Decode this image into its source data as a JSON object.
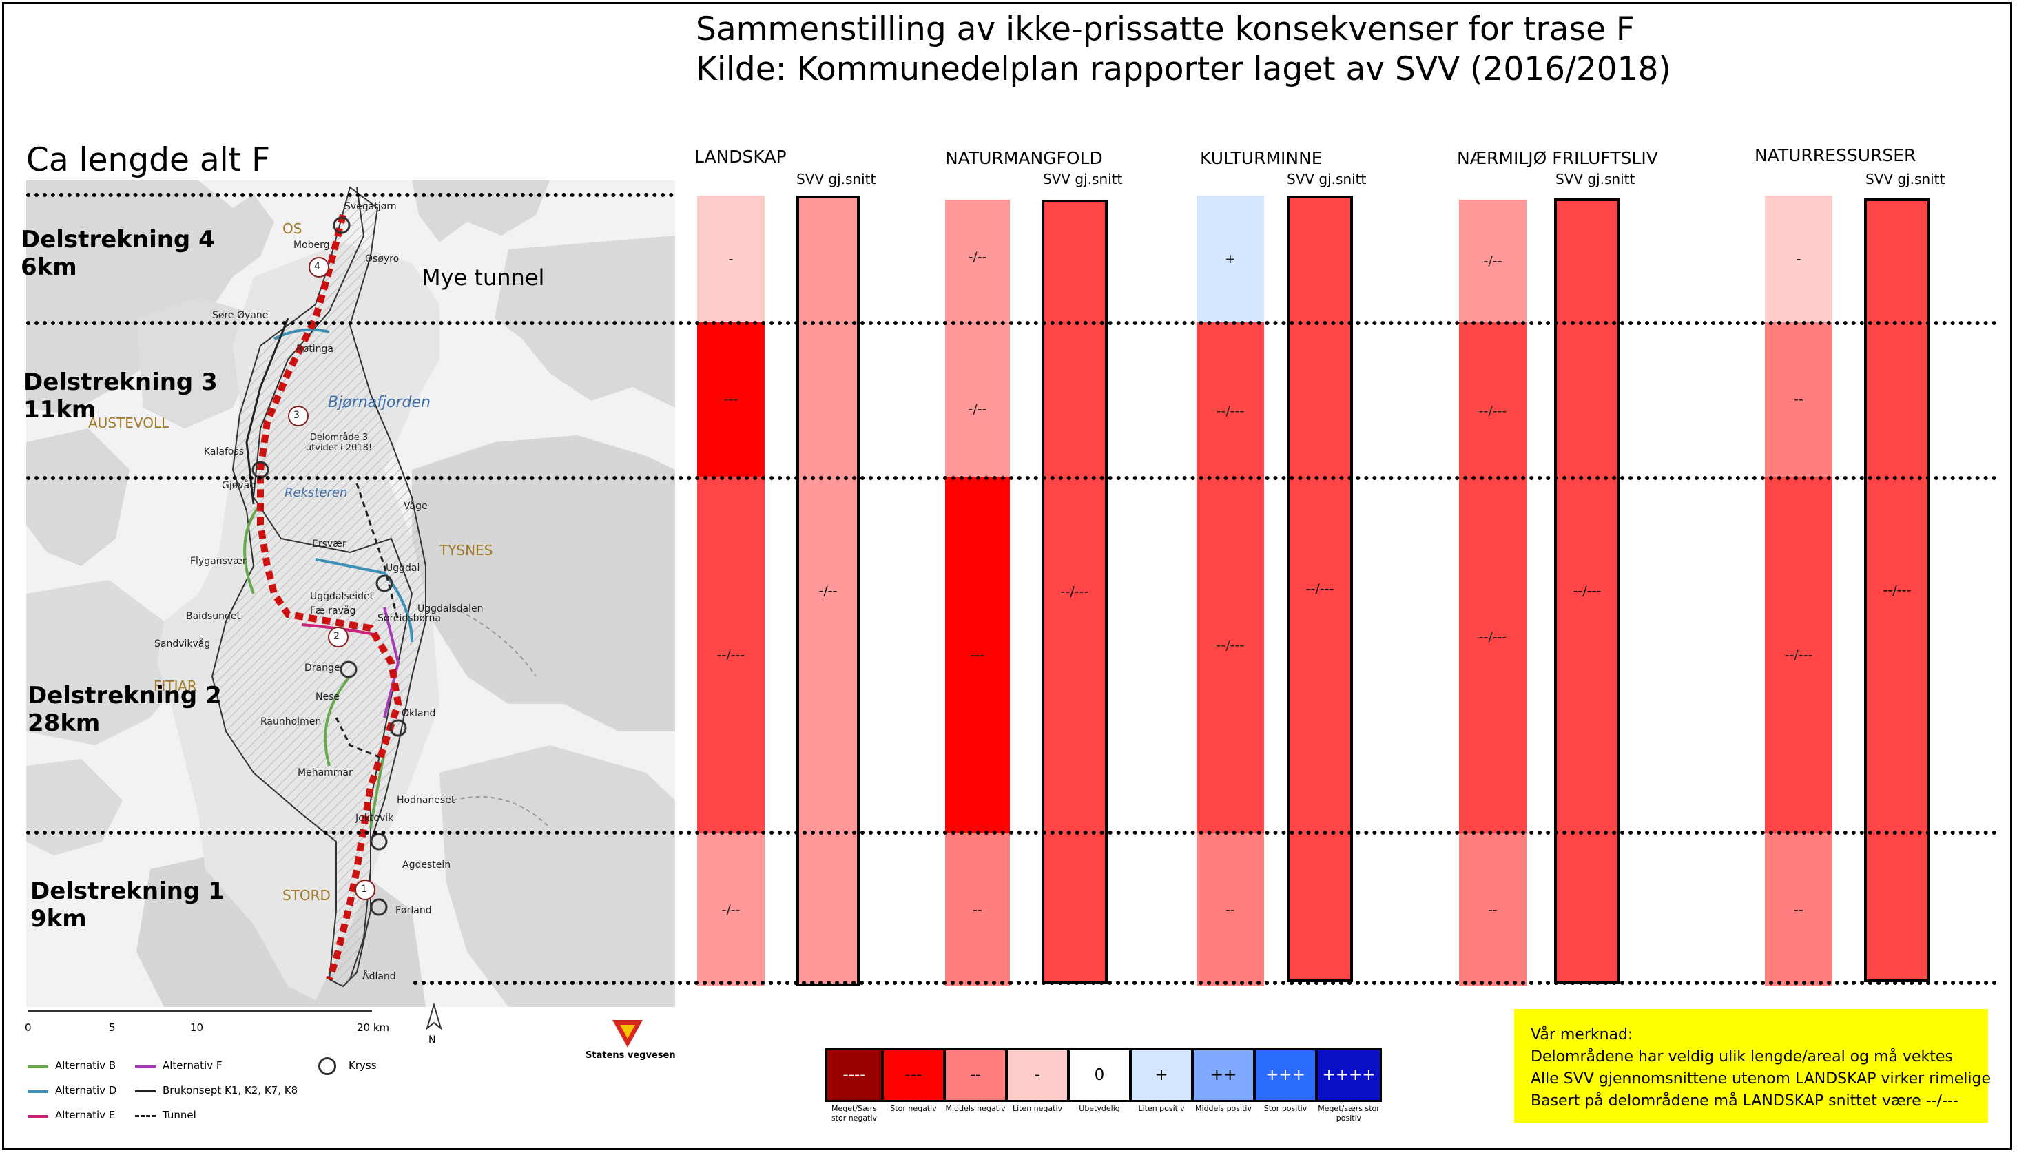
{
  "title": {
    "line1": "Sammenstilling av ikke-prissatte konsekvenser for trase F",
    "line2": "Kilde: Kommunedelplan rapporter laget av SVV (2016/2018)"
  },
  "length_heading": "Ca lengde alt F",
  "segments": [
    {
      "name": "Delstrekning 4",
      "length": "6km"
    },
    {
      "name": "Delstrekning 3",
      "length": "11km"
    },
    {
      "name": "Delstrekning 2",
      "length": "28km"
    },
    {
      "name": "Delstrekning 1",
      "length": "9km"
    }
  ],
  "tunnel_note": "Mye tunnel",
  "svv_label": "SVV gj.snitt",
  "categories": [
    {
      "name": "LANDSKAP",
      "values": [
        "-",
        "---",
        "--/---",
        "-/--"
      ],
      "colors": [
        "#ffcccc",
        "#ff0000",
        "#ff4545",
        "#ff9999"
      ],
      "average": "-/--",
      "avg_color": "#ff9999"
    },
    {
      "name": "NATURMANGFOLD",
      "values": [
        "-/--",
        "-/--",
        "---",
        "--"
      ],
      "colors": [
        "#ff9999",
        "#ff9999",
        "#ff0000",
        "#ff7f7f"
      ],
      "average": "--/---",
      "avg_color": "#ff4545"
    },
    {
      "name": "KULTURMINNE",
      "values": [
        "+",
        "--/---",
        "--/---",
        "--"
      ],
      "colors": [
        "#d4e6ff",
        "#ff4545",
        "#ff4545",
        "#ff7f7f"
      ],
      "average": "--/---",
      "avg_color": "#ff4545"
    },
    {
      "name": "NÆRMILJØ FRILUFTSLIV",
      "values": [
        "-/--",
        "--/---",
        "--/---",
        "--"
      ],
      "colors": [
        "#ff9999",
        "#ff4545",
        "#ff4545",
        "#ff7f7f"
      ],
      "average": "--/---",
      "avg_color": "#ff4545"
    },
    {
      "name": "NATURRESSURSER",
      "values": [
        "-",
        "--",
        "--/---",
        "--"
      ],
      "colors": [
        "#ffcccc",
        "#ff7f7f",
        "#ff4545",
        "#ff7f7f"
      ],
      "average": "--/---",
      "avg_color": "#ff4545"
    }
  ],
  "legend": [
    {
      "symbol": "----",
      "caption": "Meget/Særs stor negativ",
      "color": "#990000"
    },
    {
      "symbol": "---",
      "caption": "Stor negativ",
      "color": "#ff0000"
    },
    {
      "symbol": "--",
      "caption": "Middels negativ",
      "color": "#ff7f7f"
    },
    {
      "symbol": "-",
      "caption": "Liten negativ",
      "color": "#ffcccc"
    },
    {
      "symbol": "0",
      "caption": "Ubetydelig",
      "color": "#ffffff"
    },
    {
      "symbol": "+",
      "caption": "Liten positiv",
      "color": "#d4e6ff"
    },
    {
      "symbol": "++",
      "caption": "Middels positiv",
      "color": "#7faaff"
    },
    {
      "symbol": "+++",
      "caption": "Stor positiv",
      "color": "#2b6cff"
    },
    {
      "symbol": "++++",
      "caption": "Meget/særs stor positiv",
      "color": "#0a10c8"
    }
  ],
  "note": {
    "heading": "Vår merknad:",
    "lines": [
      "Delområdene har veldig ulik lengde/areal og må vektes",
      "Alle SVV gjennomsnittene utenom LANDSKAP virker rimelige",
      "Basert på delområdene må LANDSKAP snittet være --/---"
    ]
  },
  "map": {
    "place_labels": {
      "os": "OS",
      "austevoll": "AUSTEVOLL",
      "tysnes": "TYSNES",
      "fitjar": "FITJAR",
      "stord": "STORD",
      "bjornafjorden": "Bjørnafjorden",
      "reksteren": "Reksteren",
      "svegatjorn": "Svegatjørn",
      "moberg": "Moberg",
      "osoyro": "Osøyro",
      "sore_ovane": "Søre Øyane",
      "rotinga": "Røtinga",
      "kalafoss": "Kalafoss",
      "gjovag": "Gjøvåg",
      "vage": "Våge",
      "ersvar": "Ersvær",
      "uggdal": "Uggdal",
      "flygansvar": "Flygansvær",
      "uggdalseidet": "Uggdalseidet",
      "fararvag": "Fæ ravåg",
      "uggdalsdalen": "Uggdalsdalen",
      "baidsundet": "Baidsundet",
      "soreidsborna": "Søreidsbørna",
      "sandvikvag": "Sandvikvåg",
      "drange": "Drange",
      "nese": "Nese",
      "okland": "Økland",
      "raunholmen": "Raunholmen",
      "mehammar": "Mehammar",
      "hodnaneset": "Hodnaneset",
      "jektevik": "Jektevik",
      "agdestein": "Agdestein",
      "forland": "Førland",
      "adland": "Ådland"
    },
    "delomrade_note": "Delområde 3 utvidet i 2018!",
    "area_numbers": [
      "4",
      "3",
      "2",
      "1"
    ],
    "scale_ticks": [
      "0",
      "5",
      "10",
      "20 km"
    ],
    "north": "N",
    "agency": "Statens vegvesen",
    "legend": {
      "alt_b": "Alternativ B",
      "alt_f": "Alternativ F",
      "kryss": "Kryss",
      "alt_d": "Alternativ D",
      "brukonsept": "Brukonsept K1, K2, K7, K8",
      "alt_e": "Alternativ E",
      "tunnel": "Tunnel"
    }
  }
}
